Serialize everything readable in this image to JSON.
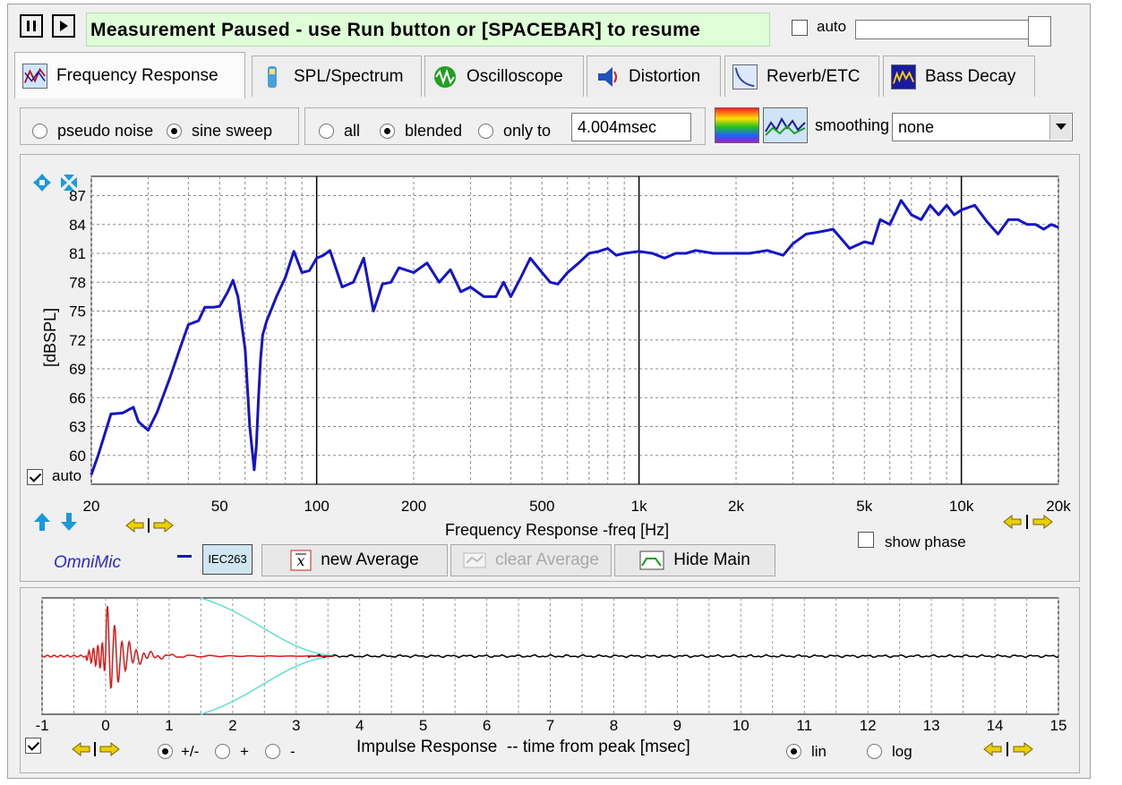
{
  "toolbar": {
    "pause_icon": "pause-icon",
    "play_icon": "play-icon",
    "status": "Measurement Paused - use Run button or [SPACEBAR] to resume",
    "auto_label": "auto",
    "auto_checked": false
  },
  "tabs": [
    {
      "label": "Frequency Response",
      "icon": "frequency-response-icon",
      "active": true
    },
    {
      "label": "SPL/Spectrum",
      "icon": "spl-meter-icon",
      "active": false
    },
    {
      "label": "Oscilloscope",
      "icon": "oscilloscope-icon",
      "active": false
    },
    {
      "label": "Distortion",
      "icon": "distortion-icon",
      "active": false
    },
    {
      "label": "Reverb/ETC",
      "icon": "reverb-icon",
      "active": false
    },
    {
      "label": "Bass Decay",
      "icon": "bass-decay-icon",
      "active": false
    }
  ],
  "controls": {
    "pseudo_noise": "pseudo noise",
    "sine_sweep": "sine sweep",
    "signal_selected": "sine sweep",
    "all": "all",
    "blended": "blended",
    "only_to": "only to",
    "window_selected": "blended",
    "window_value": "4.004msec",
    "smoothing_label": "smoothing",
    "smoothing_value": "none"
  },
  "main_chart": {
    "yaxis_label": "[dBSPL]",
    "xaxis_label": "Frequency Response -freq [Hz]",
    "auto_label": "auto",
    "auto_checked": true,
    "show_phase_label": "show phase",
    "show_phase_checked": false,
    "y_ticks": [
      "87",
      "84",
      "81",
      "78",
      "75",
      "72",
      "69",
      "66",
      "63",
      "60"
    ],
    "x_ticks": [
      "20",
      "50",
      "100",
      "200",
      "500",
      "1k",
      "2k",
      "5k",
      "10k",
      "20k"
    ],
    "line_color": "#1414c8"
  },
  "chart_data": [
    {
      "type": "line",
      "xlabel": "Frequency Response -freq [Hz]",
      "ylabel": "[dBSPL]",
      "xscale": "log",
      "xlim": [
        20,
        20000
      ],
      "ylim": [
        57,
        89
      ],
      "grid": true,
      "series": [
        {
          "x": [
            20,
            21,
            23,
            25,
            27,
            28,
            30,
            32,
            35,
            38,
            40,
            43,
            45,
            48,
            50,
            53,
            55,
            57,
            60,
            62,
            64,
            65,
            66,
            67,
            68,
            70,
            72,
            75,
            80,
            85,
            90,
            95,
            100,
            105,
            110,
            120,
            130,
            140,
            150,
            160,
            170,
            180,
            200,
            220,
            240,
            260,
            280,
            300,
            330,
            360,
            380,
            400,
            430,
            460,
            500,
            530,
            560,
            600,
            650,
            700,
            750,
            800,
            850,
            900,
            1000,
            1100,
            1200,
            1300,
            1400,
            1500,
            1700,
            1900,
            2000,
            2200,
            2500,
            2800,
            3000,
            3300,
            3600,
            4000,
            4500,
            5000,
            5300,
            5600,
            6000,
            6500,
            7000,
            7500,
            8000,
            8500,
            9000,
            9500,
            10000,
            11000,
            12000,
            13000,
            14000,
            15000,
            16000,
            17000,
            18000,
            19000,
            20000
          ],
          "values": [
            58,
            60,
            64.3,
            64.4,
            65,
            63.5,
            62.6,
            64.5,
            68,
            71.5,
            73.6,
            74,
            75.4,
            75.4,
            75.5,
            77,
            78.2,
            76.5,
            71,
            63,
            58.5,
            61,
            66,
            70,
            72.5,
            74,
            75,
            76.5,
            78.5,
            81.2,
            79,
            79.2,
            80.5,
            80.8,
            81.3,
            77.5,
            78,
            80.5,
            75,
            77.8,
            78,
            79.5,
            79,
            80,
            78,
            79.3,
            77,
            77.5,
            76.5,
            76.5,
            78,
            76.5,
            78.5,
            80.5,
            79,
            78,
            77.8,
            79,
            80,
            81,
            81.2,
            81.5,
            80.8,
            81,
            81.2,
            81,
            80.5,
            81,
            81,
            81.3,
            81,
            81,
            81,
            81,
            81.3,
            80.8,
            82,
            83,
            83.2,
            83.5,
            81.5,
            82.2,
            82,
            84.5,
            84,
            86.5,
            85,
            84.5,
            86,
            85,
            86,
            85,
            85.5,
            86,
            84.3,
            83,
            84.5,
            84.5,
            84,
            84,
            83.5,
            84,
            83.7
          ]
        }
      ]
    },
    {
      "type": "line",
      "xlabel": "Impulse Response  -- time from peak [msec]",
      "ylabel": "",
      "xlim": [
        -1,
        15
      ],
      "grid": true,
      "series": [
        {
          "x": [
            -1,
            0,
            0.3,
            0.6,
            1,
            1.5,
            2,
            3,
            4,
            15
          ],
          "values": [
            0,
            0,
            0.2,
            -0.1,
            0.05,
            0.02,
            0,
            0,
            0,
            0
          ]
        }
      ]
    }
  ],
  "main_footer": {
    "brand": "OmniMic",
    "mic_badge": "IEC263",
    "new_average": "new Average",
    "clear_average": "clear Average",
    "hide_main": "Hide Main"
  },
  "impulse_chart": {
    "xaxis_label": "Impulse Response  -- time from peak [msec]",
    "x_ticks": [
      "-1",
      "0",
      "1",
      "2",
      "3",
      "4",
      "5",
      "6",
      "7",
      "8",
      "9",
      "10",
      "11",
      "12",
      "13",
      "14",
      "15"
    ],
    "pm_label": "+/-",
    "plus_label": "+",
    "minus_label": "-",
    "polarity_selected": "+/-",
    "lin_label": "lin",
    "log_label": "log",
    "scale_selected": "lin",
    "checked": true
  }
}
